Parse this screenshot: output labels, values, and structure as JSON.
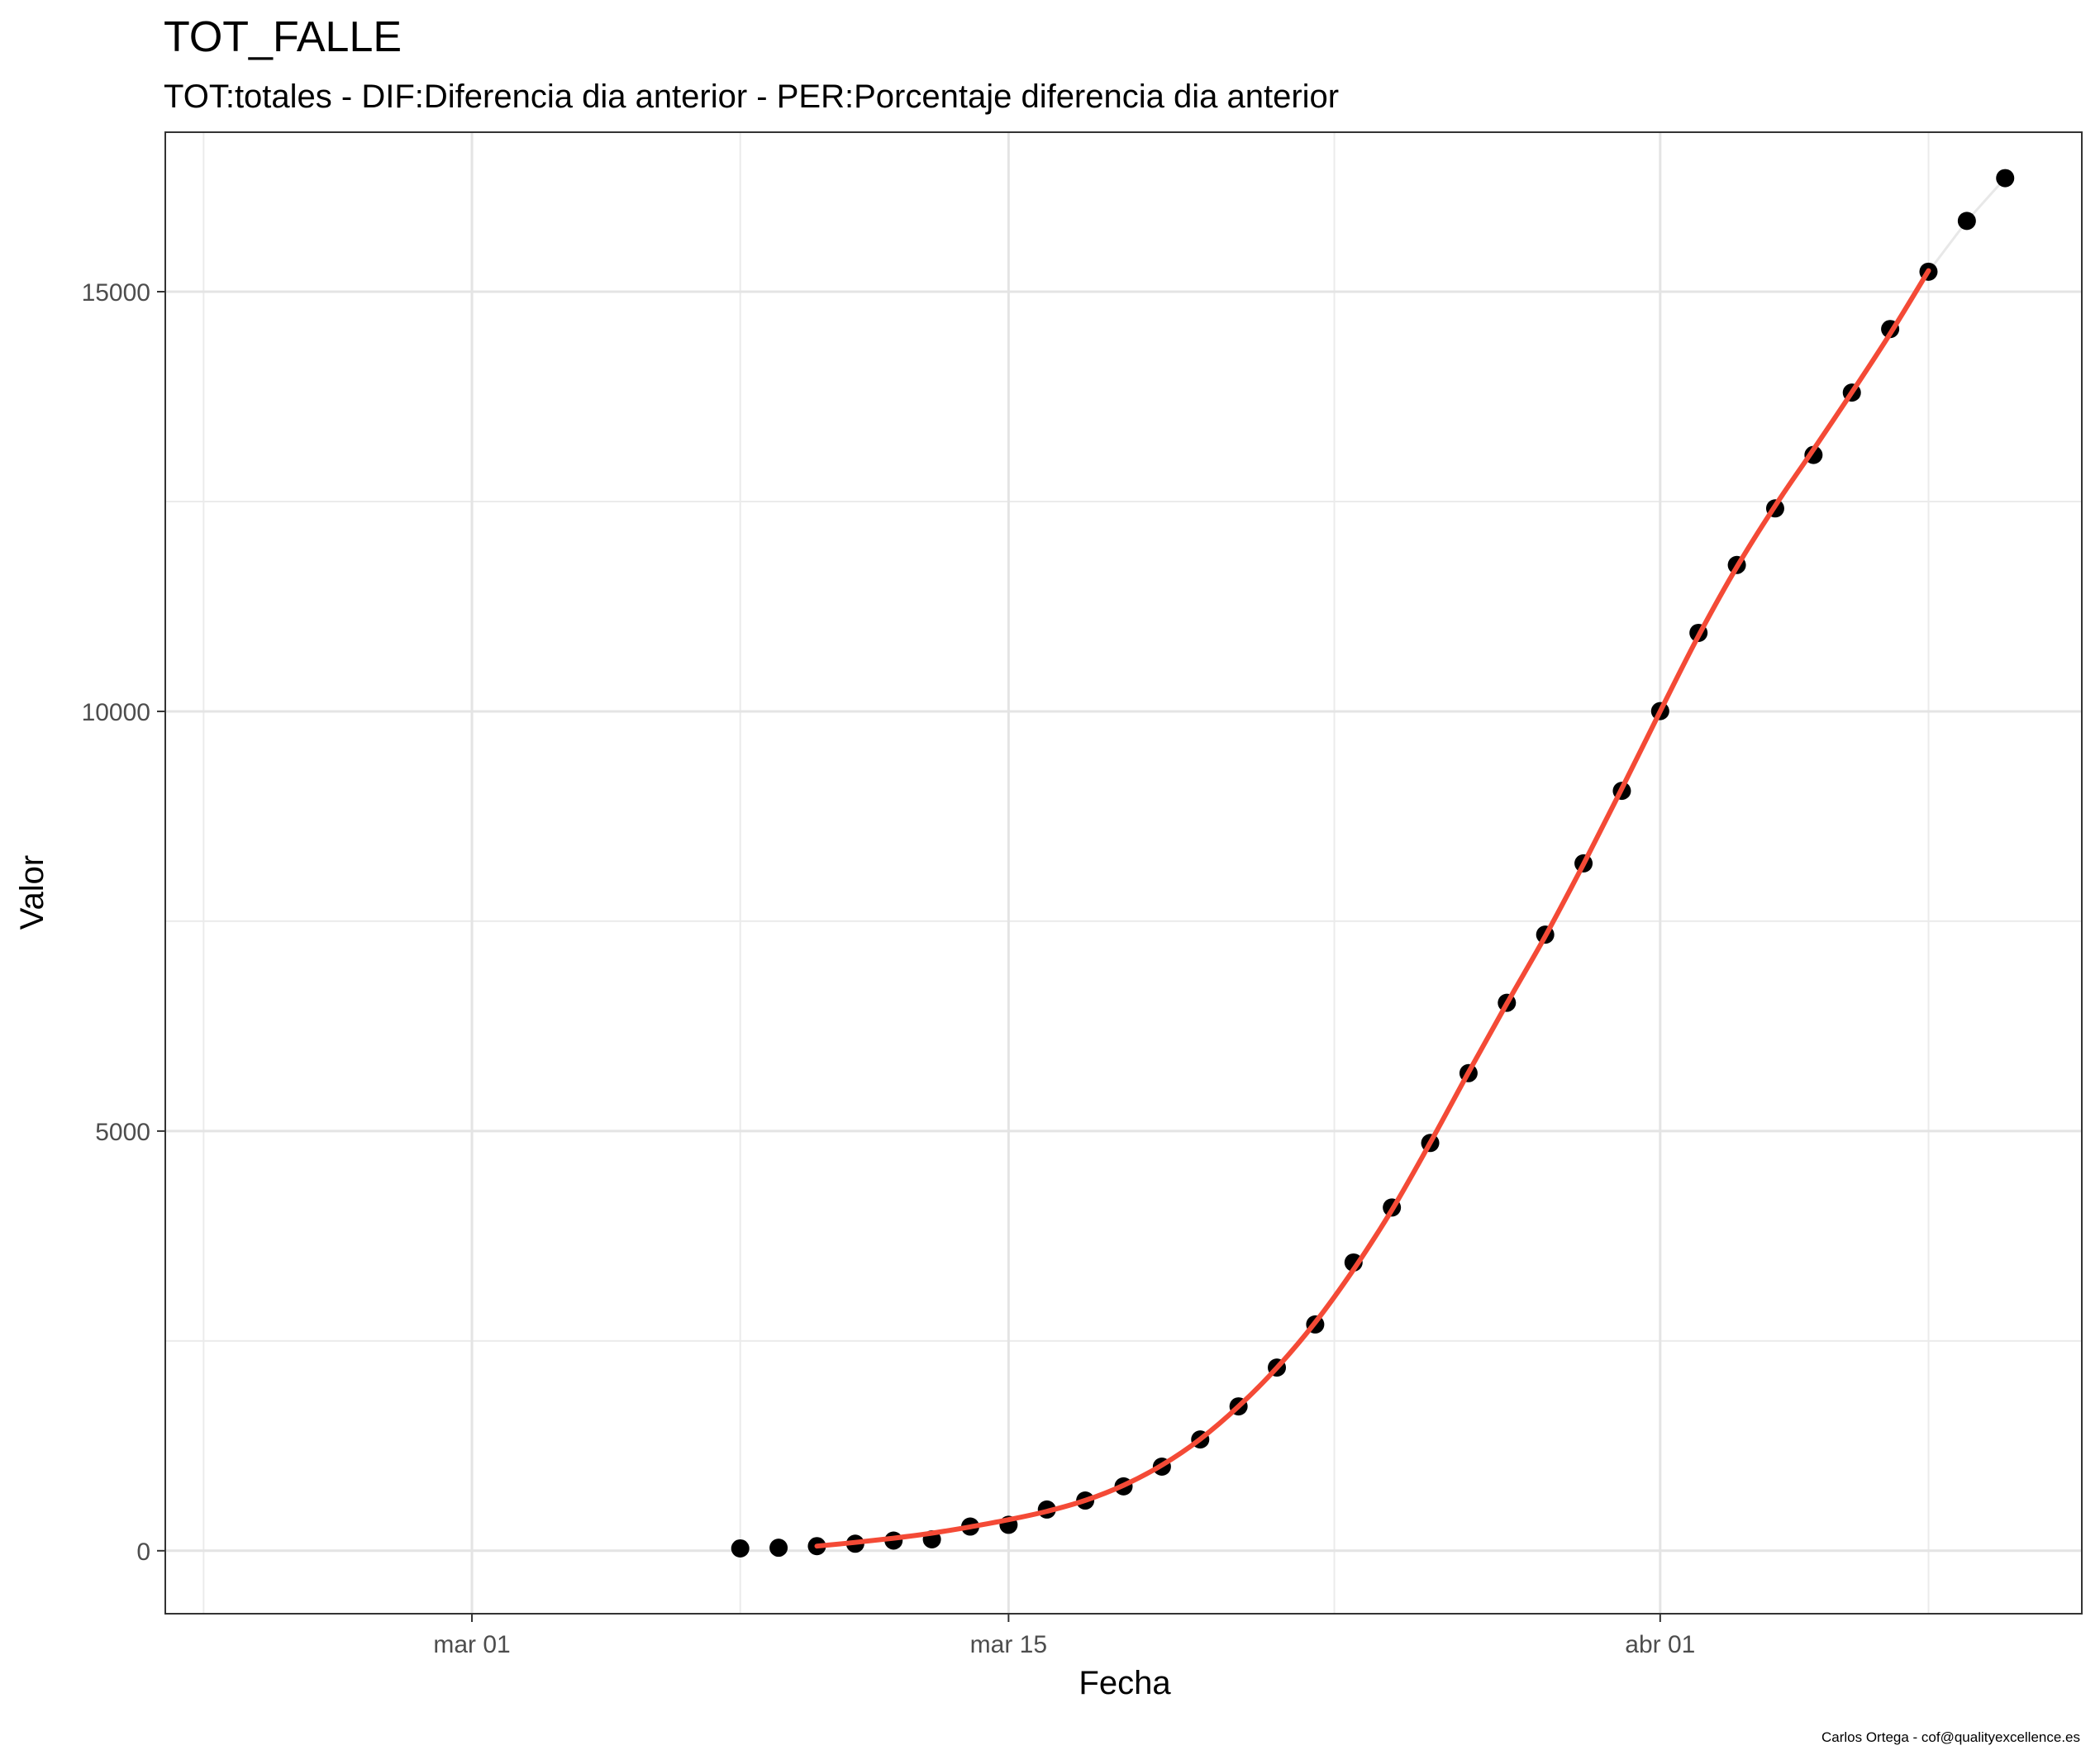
{
  "chart_data": {
    "type": "line",
    "title": "TOT_FALLE",
    "subtitle": "TOT:totales - DIF:Diferencia dia anterior - PER:Porcentaje diferencia dia anterior",
    "xlabel": "Fecha",
    "ylabel": "Valor",
    "caption": "Carlos Ortega - cof@qualityexcellence.es",
    "x_ticks": [
      "mar 01",
      "mar 15",
      "abr 01"
    ],
    "x_tick_dates": [
      "2020-03-01",
      "2020-03-15",
      "2020-04-01"
    ],
    "y_ticks": [
      0,
      5000,
      10000,
      15000
    ],
    "xlim": [
      "2020-02-22",
      "2020-04-12"
    ],
    "ylim": [
      -750,
      16900
    ],
    "grid": true,
    "series": [
      {
        "kind": "points",
        "color": "#000000",
        "x": [
          "2020-03-08",
          "2020-03-09",
          "2020-03-10",
          "2020-03-11",
          "2020-03-12",
          "2020-03-13",
          "2020-03-14",
          "2020-03-15",
          "2020-03-16",
          "2020-03-17",
          "2020-03-18",
          "2020-03-19",
          "2020-03-20",
          "2020-03-21",
          "2020-03-22",
          "2020-03-23",
          "2020-03-24",
          "2020-03-25",
          "2020-03-26",
          "2020-03-27",
          "2020-03-28",
          "2020-03-29",
          "2020-03-30",
          "2020-03-31",
          "2020-04-01",
          "2020-04-02",
          "2020-04-03",
          "2020-04-04",
          "2020-04-05",
          "2020-04-06",
          "2020-04-07",
          "2020-04-08",
          "2020-04-09",
          "2020-04-10"
        ],
        "y": [
          28,
          36,
          55,
          84,
          121,
          136,
          288,
          309,
          491,
          598,
          767,
          1002,
          1326,
          1720,
          2182,
          2696,
          3434,
          4089,
          4858,
          5690,
          6528,
          7340,
          8189,
          9053,
          10003,
          10935,
          11744,
          12418,
          13055,
          13798,
          14555,
          15238,
          15843,
          16353
        ]
      },
      {
        "kind": "line",
        "color": "#e8e8e8",
        "x": [
          "2020-04-08",
          "2020-04-09",
          "2020-04-10"
        ],
        "y": [
          15238,
          15843,
          16353
        ]
      },
      {
        "kind": "smooth",
        "color": "#f44a36",
        "x": [
          "2020-03-10",
          "2020-03-11",
          "2020-03-12",
          "2020-03-13",
          "2020-03-14",
          "2020-03-15",
          "2020-03-16",
          "2020-03-17",
          "2020-03-18",
          "2020-03-19",
          "2020-03-20",
          "2020-03-21",
          "2020-03-22",
          "2020-03-23",
          "2020-03-24",
          "2020-03-25",
          "2020-03-26",
          "2020-03-27",
          "2020-03-28",
          "2020-03-29",
          "2020-03-30",
          "2020-03-31",
          "2020-04-01",
          "2020-04-02",
          "2020-04-03",
          "2020-04-04",
          "2020-04-05",
          "2020-04-06",
          "2020-04-07",
          "2020-04-08"
        ],
        "y": [
          55,
          100,
          150,
          210,
          285,
          370,
          470,
          600,
          780,
          1020,
          1330,
          1720,
          2180,
          2720,
          3350,
          4060,
          4860,
          5700,
          6520,
          7320,
          8180,
          9080,
          10000,
          10900,
          11720,
          12450,
          13120,
          13800,
          14500,
          15250
        ]
      }
    ]
  }
}
